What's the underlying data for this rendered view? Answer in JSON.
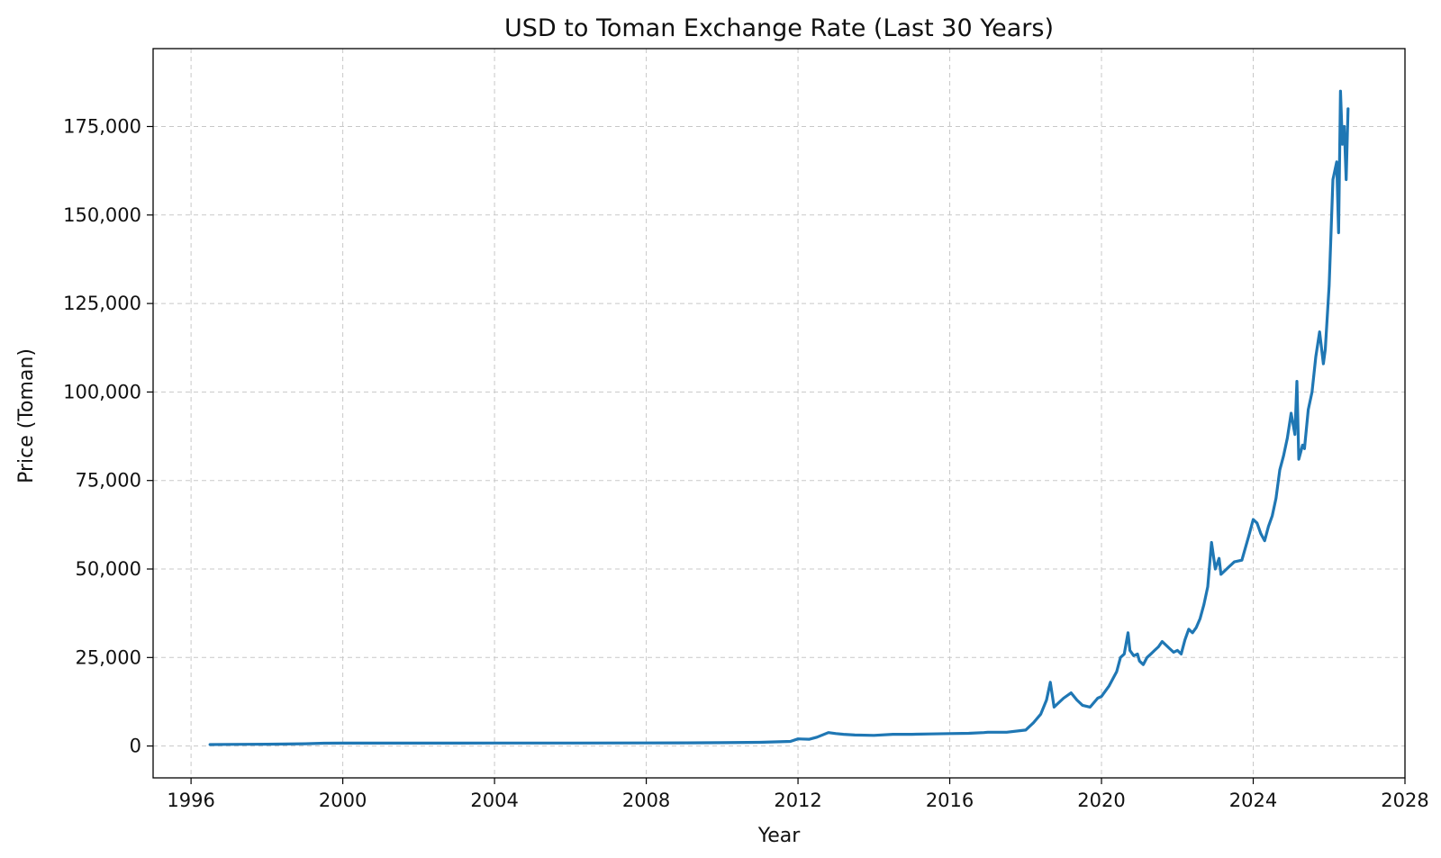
{
  "chart_data": {
    "type": "line",
    "title": "USD to Toman Exchange Rate (Last 30 Years)",
    "xlabel": "Year",
    "ylabel": "Price (Toman)",
    "xlim": [
      1995.0,
      2028.0
    ],
    "ylim": [
      -9000,
      197000
    ],
    "x_ticks": [
      1996,
      2000,
      2004,
      2008,
      2012,
      2016,
      2020,
      2024,
      2028
    ],
    "y_ticks": [
      0,
      25000,
      50000,
      75000,
      100000,
      125000,
      150000,
      175000
    ],
    "x_tick_labels": [
      "1996",
      "2000",
      "2004",
      "2008",
      "2012",
      "2016",
      "2020",
      "2024",
      "2028"
    ],
    "y_tick_labels": [
      "0",
      "25,000",
      "50,000",
      "75,000",
      "100,000",
      "125,000",
      "150,000",
      "175,000"
    ],
    "grid": true,
    "legend": "none",
    "series": [
      {
        "color": "#1f77b4",
        "x": [
          1996.5,
          1997.0,
          1997.5,
          1998.0,
          1998.5,
          1999.0,
          1999.5,
          2000.0,
          2002.0,
          2004.0,
          2006.0,
          2008.0,
          2009.0,
          2010.0,
          2011.0,
          2011.8,
          2012.0,
          2012.3,
          2012.5,
          2012.8,
          2013.0,
          2013.2,
          2013.5,
          2014.0,
          2014.5,
          2015.0,
          2015.5,
          2016.0,
          2016.5,
          2016.9,
          2017.0,
          2017.5,
          2018.0,
          2018.2,
          2018.4,
          2018.55,
          2018.65,
          2018.75,
          2018.85,
          2019.0,
          2019.2,
          2019.35,
          2019.5,
          2019.7,
          2019.9,
          2020.0,
          2020.2,
          2020.4,
          2020.5,
          2020.6,
          2020.7,
          2020.75,
          2020.85,
          2020.95,
          2021.0,
          2021.1,
          2021.2,
          2021.3,
          2021.4,
          2021.5,
          2021.6,
          2021.7,
          2021.8,
          2021.9,
          2022.0,
          2022.1,
          2022.2,
          2022.3,
          2022.4,
          2022.5,
          2022.6,
          2022.7,
          2022.8,
          2022.9,
          2023.0,
          2023.1,
          2023.15,
          2023.25,
          2023.35,
          2023.5,
          2023.7,
          2023.9,
          2024.0,
          2024.1,
          2024.2,
          2024.3,
          2024.4,
          2024.5,
          2024.6,
          2024.7,
          2024.8,
          2024.9,
          2025.0,
          2025.1,
          2025.15,
          2025.2,
          2025.25,
          2025.3,
          2025.35,
          2025.45,
          2025.55,
          2025.65,
          2025.75,
          2025.85,
          2025.9,
          2026.0,
          2026.05,
          2026.1,
          2026.2,
          2026.25,
          2026.3,
          2026.35,
          2026.4,
          2026.45,
          2026.5
        ],
        "y": [
          400,
          450,
          480,
          500,
          550,
          650,
          800,
          820,
          820,
          830,
          850,
          870,
          900,
          950,
          1050,
          1300,
          2000,
          1900,
          2500,
          3800,
          3500,
          3300,
          3100,
          3000,
          3300,
          3300,
          3400,
          3500,
          3600,
          3800,
          3900,
          3900,
          4500,
          6500,
          9000,
          13000,
          18000,
          11000,
          12000,
          13500,
          15000,
          13000,
          11500,
          11000,
          13500,
          14000,
          17000,
          21000,
          25000,
          26000,
          32000,
          27000,
          25500,
          26000,
          24000,
          23000,
          25000,
          26000,
          27000,
          28000,
          29500,
          28500,
          27500,
          26500,
          27000,
          26000,
          30000,
          33000,
          32000,
          33500,
          36000,
          40000,
          45000,
          57500,
          50000,
          53000,
          48500,
          49500,
          50500,
          52000,
          52500,
          60000,
          64000,
          63000,
          60000,
          58000,
          62000,
          65000,
          70000,
          78000,
          82000,
          87000,
          94000,
          88000,
          103000,
          81000,
          83000,
          85000,
          84000,
          95000,
          100000,
          110000,
          117000,
          108000,
          112000,
          130000,
          145000,
          160000,
          165000,
          145000,
          185000,
          170000,
          175000,
          160000,
          180000
        ]
      }
    ]
  }
}
